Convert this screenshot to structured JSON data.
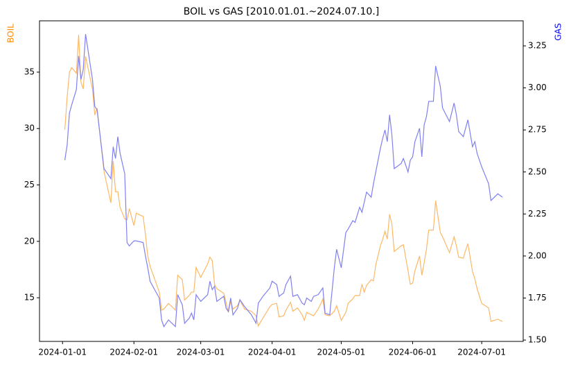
{
  "chart_data": {
    "type": "line",
    "title": "BOIL vs GAS [2010.01.01.~2024.07.10.]",
    "ylabel": "BOIL",
    "y2label": "GAS",
    "ylabel_color": "#ff8c00",
    "y2label_color": "#0000ff",
    "x": [
      "2024-01-02",
      "2024-01-03",
      "2024-01-04",
      "2024-01-05",
      "2024-01-07",
      "2024-01-08",
      "2024-01-09",
      "2024-01-10",
      "2024-01-11",
      "2024-01-14",
      "2024-01-15",
      "2024-01-16",
      "2024-01-19",
      "2024-01-22",
      "2024-01-23",
      "2024-01-24",
      "2024-01-25",
      "2024-01-26",
      "2024-01-28",
      "2024-01-29",
      "2024-01-30",
      "2024-02-01",
      "2024-02-02",
      "2024-02-05",
      "2024-02-06",
      "2024-02-07",
      "2024-02-08",
      "2024-02-12",
      "2024-02-13",
      "2024-02-14",
      "2024-02-16",
      "2024-02-19",
      "2024-02-20",
      "2024-02-22",
      "2024-02-23",
      "2024-02-25",
      "2024-02-26",
      "2024-02-27",
      "2024-02-28",
      "2024-03-01",
      "2024-03-04",
      "2024-03-05",
      "2024-03-06",
      "2024-03-07",
      "2024-03-08",
      "2024-03-11",
      "2024-03-12",
      "2024-03-13",
      "2024-03-14",
      "2024-03-15",
      "2024-03-17",
      "2024-03-18",
      "2024-03-20",
      "2024-03-23",
      "2024-03-25",
      "2024-03-26",
      "2024-03-28",
      "2024-03-31",
      "2024-04-01",
      "2024-04-03",
      "2024-04-04",
      "2024-04-06",
      "2024-04-07",
      "2024-04-09",
      "2024-04-10",
      "2024-04-12",
      "2024-04-14",
      "2024-04-15",
      "2024-04-16",
      "2024-04-18",
      "2024-04-19",
      "2024-04-21",
      "2024-04-22",
      "2024-04-23",
      "2024-04-24",
      "2024-04-26",
      "2024-04-28",
      "2024-04-29",
      "2024-05-01",
      "2024-05-03",
      "2024-05-04",
      "2024-05-06",
      "2024-05-07",
      "2024-05-09",
      "2024-05-10",
      "2024-05-11",
      "2024-05-12",
      "2024-05-14",
      "2024-05-15",
      "2024-05-16",
      "2024-05-18",
      "2024-05-19",
      "2024-05-20",
      "2024-05-21",
      "2024-05-22",
      "2024-05-23",
      "2024-05-24",
      "2024-05-27",
      "2024-05-28",
      "2024-05-30",
      "2024-05-31",
      "2024-06-01",
      "2024-06-02",
      "2024-06-04",
      "2024-06-05",
      "2024-06-06",
      "2024-06-07",
      "2024-06-08",
      "2024-06-10",
      "2024-06-11",
      "2024-06-13",
      "2024-06-14",
      "2024-06-17",
      "2024-06-19",
      "2024-06-20",
      "2024-06-21",
      "2024-06-23",
      "2024-06-24",
      "2024-06-25",
      "2024-06-27",
      "2024-06-28",
      "2024-06-29",
      "2024-07-01",
      "2024-07-04",
      "2024-07-05",
      "2024-07-08",
      "2024-07-10"
    ],
    "series": [
      {
        "name": "BOIL",
        "color": "#fbb866",
        "values": [
          29.9,
          32.8,
          35.0,
          35.4,
          34.9,
          38.3,
          34.1,
          33.5,
          36.4,
          33.5,
          31.2,
          31.8,
          26.2,
          23.4,
          27.1,
          24.4,
          24.4,
          23.0,
          22.0,
          21.9,
          22.9,
          21.4,
          22.5,
          22.2,
          20.6,
          18.7,
          17.8,
          15.5,
          13.9,
          14.0,
          14.5,
          13.9,
          17.0,
          16.6,
          14.8,
          15.2,
          15.5,
          15.5,
          17.7,
          16.8,
          18.0,
          18.6,
          18.3,
          16.2,
          15.8,
          15.4,
          14.6,
          13.7,
          14.7,
          14.0,
          14.3,
          14.8,
          14.0,
          13.8,
          13.4,
          12.5,
          13.2,
          14.2,
          14.4,
          14.5,
          13.3,
          13.4,
          13.9,
          14.6,
          13.8,
          14.1,
          13.5,
          13.0,
          13.7,
          13.5,
          13.4,
          14.0,
          14.4,
          14.9,
          13.5,
          13.4,
          13.8,
          14.3,
          13.0,
          13.7,
          14.5,
          14.9,
          15.2,
          15.2,
          16.2,
          15.5,
          16.1,
          16.6,
          16.5,
          17.9,
          19.6,
          20.2,
          20.9,
          20.2,
          22.4,
          21.5,
          19.1,
          19.6,
          19.7,
          17.4,
          16.2,
          16.3,
          17.4,
          18.7,
          17.0,
          18.1,
          19.3,
          21.0,
          21.0,
          23.6,
          20.8,
          20.4,
          19.0,
          20.4,
          19.6,
          18.6,
          18.5,
          19.2,
          19.8,
          17.3,
          16.7,
          15.8,
          14.5,
          14.1,
          12.9,
          13.1,
          12.9
        ]
      },
      {
        "name": "GAS",
        "color": "#7f7ff2",
        "axis": "y2",
        "values": [
          2.57,
          2.66,
          2.85,
          2.9,
          2.99,
          3.19,
          3.05,
          3.11,
          3.32,
          3.05,
          2.89,
          2.87,
          2.52,
          2.46,
          2.65,
          2.58,
          2.71,
          2.61,
          2.49,
          2.08,
          2.06,
          2.09,
          2.09,
          2.08,
          2.0,
          1.93,
          1.85,
          1.75,
          1.62,
          1.58,
          1.62,
          1.58,
          1.77,
          1.71,
          1.6,
          1.63,
          1.66,
          1.62,
          1.77,
          1.73,
          1.77,
          1.85,
          1.8,
          1.82,
          1.73,
          1.76,
          1.69,
          1.67,
          1.75,
          1.65,
          1.69,
          1.74,
          1.7,
          1.65,
          1.6,
          1.72,
          1.76,
          1.81,
          1.85,
          1.83,
          1.76,
          1.78,
          1.83,
          1.88,
          1.76,
          1.77,
          1.72,
          1.71,
          1.75,
          1.73,
          1.76,
          1.77,
          1.79,
          1.81,
          1.66,
          1.65,
          1.93,
          2.04,
          1.93,
          2.14,
          2.16,
          2.21,
          2.2,
          2.29,
          2.26,
          2.32,
          2.38,
          2.35,
          2.43,
          2.5,
          2.64,
          2.7,
          2.75,
          2.68,
          2.84,
          2.72,
          2.52,
          2.55,
          2.58,
          2.5,
          2.57,
          2.59,
          2.68,
          2.76,
          2.59,
          2.78,
          2.83,
          2.92,
          2.92,
          3.13,
          3.01,
          2.88,
          2.8,
          2.91,
          2.84,
          2.74,
          2.71,
          2.76,
          2.81,
          2.65,
          2.68,
          2.61,
          2.53,
          2.43,
          2.33,
          2.37,
          2.35
        ]
      }
    ],
    "xlim": [
      "2023-12-22",
      "2024-07-19"
    ],
    "xticks": [
      "2024-01-01",
      "2024-02-01",
      "2024-03-01",
      "2024-04-01",
      "2024-05-01",
      "2024-06-01",
      "2024-07-01"
    ],
    "ylim": [
      11.13,
      39.55
    ],
    "yticks": [
      15,
      20,
      25,
      30,
      35
    ],
    "y2lim": [
      1.492,
      3.399
    ],
    "y2ticks": [
      {
        "value": 1.5,
        "label": "1.50"
      },
      1.75,
      {
        "value": 2.0,
        "label": "2.00"
      },
      2.25,
      {
        "value": 2.5,
        "label": "2.50"
      },
      2.75,
      {
        "value": 3.0,
        "label": "3.00"
      },
      3.25
    ]
  }
}
